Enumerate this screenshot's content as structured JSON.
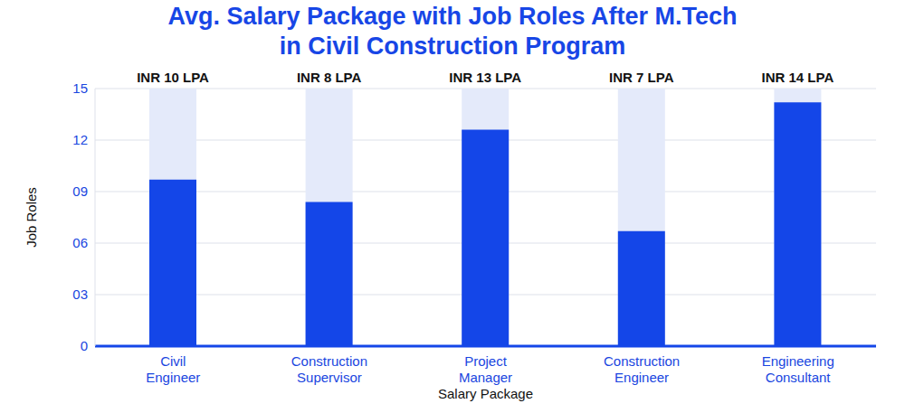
{
  "chart_data": {
    "type": "bar",
    "title": "Avg. Salary Package with Job Roles After M.Tech in Civil Construction Program",
    "xlabel": "Salary Package",
    "ylabel": "Job Roles",
    "categories": [
      "Civil Engineer",
      "Construction Supervisor",
      "Project Manager",
      "Construction Engineer",
      "Engineering Consultant"
    ],
    "values": [
      9.7,
      8.4,
      12.6,
      6.7,
      14.2
    ],
    "value_labels": [
      "INR 10 LPA",
      "INR 8 LPA",
      "INR 13 LPA",
      "INR 7 LPA",
      "INR 14 LPA"
    ],
    "data_labels": true,
    "color": "#1446e8",
    "ylim": [
      0,
      15
    ],
    "yticks": [
      0,
      {
        "value": 3,
        "label": "03"
      },
      {
        "value": 6,
        "label": "06"
      },
      {
        "value": 9,
        "label": "09"
      },
      12,
      15
    ],
    "grid": true
  }
}
